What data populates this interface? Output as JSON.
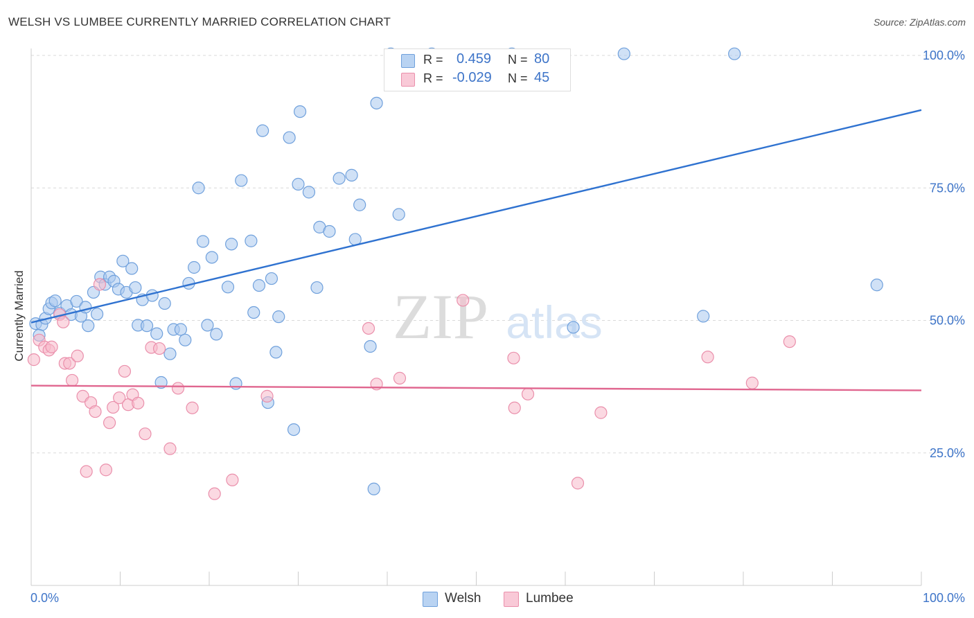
{
  "header": {
    "title": "WELSH VS LUMBEE CURRENTLY MARRIED CORRELATION CHART",
    "source": "Source: ZipAtlas.com"
  },
  "watermark": {
    "zip": "ZIP",
    "atlas": "atlas"
  },
  "legend": {
    "r_label": "R =",
    "n_label": "N =",
    "rows": [
      {
        "r": "0.459",
        "n": "80"
      },
      {
        "r": "-0.029",
        "n": "45"
      }
    ]
  },
  "bottom_legend": {
    "welsh": "Welsh",
    "lumbee": "Lumbee"
  },
  "colors": {
    "welsh_fill": "#a9c8ef",
    "welsh_stroke": "#6fa0dc",
    "welsh_line": "#2f72d0",
    "lumbee_fill": "#f7b9cb",
    "lumbee_stroke": "#ea8fab",
    "lumbee_line": "#e0668f",
    "value_text": "#3d74c8"
  },
  "chart_data": {
    "type": "scatter",
    "title": "WELSH VS LUMBEE CURRENTLY MARRIED CORRELATION CHART",
    "ylabel": "Currently Married",
    "xlabel": "",
    "xlim": [
      0,
      100
    ],
    "ylim": [
      0,
      104
    ],
    "x_tick_labels": [
      "0.0%",
      "100.0%"
    ],
    "y_ticks": [
      25,
      50,
      75,
      100
    ],
    "y_tick_labels": [
      "25.0%",
      "50.0%",
      "75.0%",
      "100.0%"
    ],
    "grid": true,
    "legend_position": "top-center",
    "series": [
      {
        "name": "Welsh",
        "r": 0.459,
        "n": 80,
        "trend": {
          "x": [
            0,
            100
          ],
          "y": [
            49.6,
            89.7
          ]
        },
        "points": [
          [
            0.5,
            49.4
          ],
          [
            1.2,
            49.2
          ],
          [
            1.6,
            50.4
          ],
          [
            2.0,
            52.2
          ],
          [
            2.3,
            53.3
          ],
          [
            2.7,
            53.7
          ],
          [
            3.2,
            51.4
          ],
          [
            4.0,
            52.8
          ],
          [
            4.5,
            51.1
          ],
          [
            5.1,
            53.6
          ],
          [
            5.6,
            50.8
          ],
          [
            6.1,
            52.5
          ],
          [
            6.4,
            49.0
          ],
          [
            7.0,
            55.3
          ],
          [
            7.4,
            51.2
          ],
          [
            7.8,
            58.2
          ],
          [
            8.3,
            56.8
          ],
          [
            8.8,
            58.2
          ],
          [
            9.3,
            57.4
          ],
          [
            9.8,
            55.9
          ],
          [
            10.3,
            61.2
          ],
          [
            10.7,
            55.3
          ],
          [
            11.3,
            59.8
          ],
          [
            11.7,
            56.2
          ],
          [
            12.0,
            49.1
          ],
          [
            12.5,
            53.9
          ],
          [
            13.0,
            49.0
          ],
          [
            13.6,
            54.7
          ],
          [
            14.1,
            47.5
          ],
          [
            14.6,
            38.3
          ],
          [
            15.0,
            53.2
          ],
          [
            15.6,
            43.7
          ],
          [
            16.0,
            48.3
          ],
          [
            16.8,
            48.3
          ],
          [
            17.3,
            46.3
          ],
          [
            17.7,
            57.0
          ],
          [
            18.3,
            60.0
          ],
          [
            18.8,
            75.0
          ],
          [
            19.3,
            64.9
          ],
          [
            19.8,
            49.1
          ],
          [
            20.3,
            61.9
          ],
          [
            20.8,
            47.4
          ],
          [
            22.1,
            56.3
          ],
          [
            22.5,
            64.4
          ],
          [
            23.0,
            38.1
          ],
          [
            23.6,
            76.4
          ],
          [
            24.7,
            65.0
          ],
          [
            25.0,
            51.5
          ],
          [
            25.6,
            56.6
          ],
          [
            26.0,
            85.8
          ],
          [
            26.6,
            34.5
          ],
          [
            27.0,
            57.9
          ],
          [
            27.5,
            44.0
          ],
          [
            27.8,
            50.7
          ],
          [
            29.0,
            84.5
          ],
          [
            29.5,
            29.4
          ],
          [
            30.0,
            75.7
          ],
          [
            30.2,
            89.4
          ],
          [
            31.2,
            74.2
          ],
          [
            32.1,
            56.2
          ],
          [
            32.4,
            67.6
          ],
          [
            33.5,
            66.8
          ],
          [
            34.6,
            76.8
          ],
          [
            36.0,
            77.4
          ],
          [
            36.4,
            65.3
          ],
          [
            36.9,
            71.8
          ],
          [
            38.1,
            45.1
          ],
          [
            38.5,
            18.2
          ],
          [
            38.8,
            91.0
          ],
          [
            40.4,
            100.3
          ],
          [
            41.3,
            70.0
          ],
          [
            45.0,
            100.3
          ],
          [
            47.8,
            94.5
          ],
          [
            54.0,
            100.3
          ],
          [
            60.9,
            48.7
          ],
          [
            66.6,
            100.3
          ],
          [
            75.5,
            50.8
          ],
          [
            79.0,
            100.3
          ],
          [
            95.0,
            56.7
          ],
          [
            0.9,
            47.2
          ]
        ]
      },
      {
        "name": "Lumbee",
        "r": -0.029,
        "n": 45,
        "trend": {
          "x": [
            0,
            100
          ],
          "y": [
            37.7,
            36.8
          ]
        },
        "points": [
          [
            0.3,
            42.6
          ],
          [
            0.9,
            46.3
          ],
          [
            1.5,
            45.0
          ],
          [
            2.0,
            44.4
          ],
          [
            2.3,
            45.0
          ],
          [
            3.2,
            51.1
          ],
          [
            3.6,
            49.7
          ],
          [
            3.8,
            41.9
          ],
          [
            4.3,
            41.9
          ],
          [
            4.6,
            38.7
          ],
          [
            5.2,
            43.3
          ],
          [
            5.8,
            35.7
          ],
          [
            6.2,
            21.5
          ],
          [
            6.7,
            34.5
          ],
          [
            7.2,
            32.8
          ],
          [
            7.7,
            56.8
          ],
          [
            8.4,
            21.8
          ],
          [
            8.8,
            30.7
          ],
          [
            9.2,
            33.6
          ],
          [
            9.9,
            35.4
          ],
          [
            10.5,
            40.4
          ],
          [
            10.9,
            34.1
          ],
          [
            11.4,
            36.0
          ],
          [
            12.0,
            34.4
          ],
          [
            12.8,
            28.6
          ],
          [
            13.5,
            44.9
          ],
          [
            14.4,
            44.7
          ],
          [
            15.6,
            25.8
          ],
          [
            16.5,
            37.2
          ],
          [
            18.1,
            33.5
          ],
          [
            20.6,
            17.3
          ],
          [
            22.6,
            19.9
          ],
          [
            26.5,
            35.7
          ],
          [
            37.9,
            48.5
          ],
          [
            38.8,
            38.0
          ],
          [
            41.4,
            39.1
          ],
          [
            48.5,
            53.8
          ],
          [
            54.2,
            42.9
          ],
          [
            54.3,
            33.5
          ],
          [
            55.8,
            36.1
          ],
          [
            61.4,
            19.3
          ],
          [
            64.0,
            32.6
          ],
          [
            76.0,
            43.1
          ],
          [
            81.0,
            38.2
          ],
          [
            85.2,
            46.0
          ]
        ]
      }
    ]
  }
}
